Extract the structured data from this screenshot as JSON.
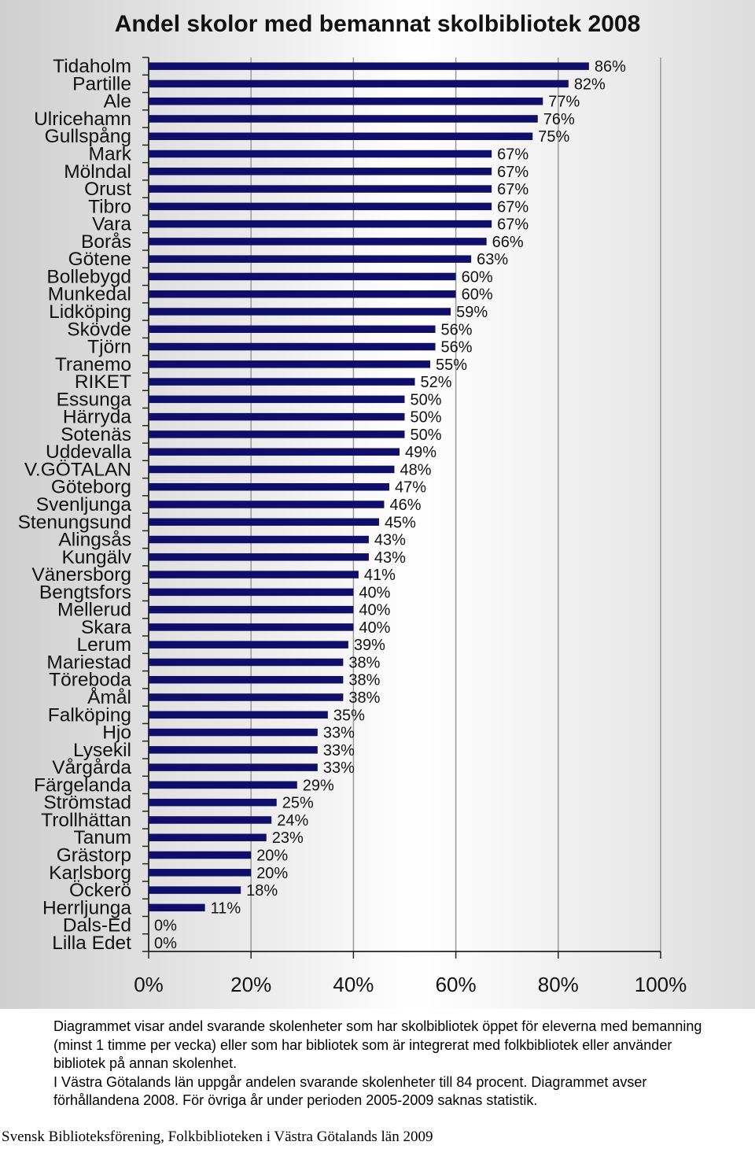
{
  "chart_data": {
    "type": "bar",
    "orientation": "horizontal",
    "title": "Andel skolor med bemannat skolbibliotek 2008",
    "categories": [
      "Tidaholm",
      "Partille",
      "Ale",
      "Ulricehamn",
      "Gullspång",
      "Mark",
      "Mölndal",
      "Orust",
      "Tibro",
      "Vara",
      "Borås",
      "Götene",
      "Bollebygd",
      "Munkedal",
      "Lidköping",
      "Skövde",
      "Tjörn",
      "Tranemo",
      "RIKET",
      "Essunga",
      "Härryda",
      "Sotenäs",
      "Uddevalla",
      "V.GÖTALAN",
      "Göteborg",
      "Svenljunga",
      "Stenungsund",
      "Alingsås",
      "Kungälv",
      "Vänersborg",
      "Bengtsfors",
      "Mellerud",
      "Skara",
      "Lerum",
      "Mariestad",
      "Töreboda",
      "Åmål",
      "Falköping",
      "Hjo",
      "Lysekil",
      "Vårgårda",
      "Färgelanda",
      "Strömstad",
      "Trollhättan",
      "Tanum",
      "Grästorp",
      "Karlsborg",
      "Öckerö",
      "Herrljunga",
      "Dals-Ed",
      "Lilla Edet"
    ],
    "values": [
      86,
      82,
      77,
      76,
      75,
      67,
      67,
      67,
      67,
      67,
      66,
      63,
      60,
      60,
      59,
      56,
      56,
      55,
      52,
      50,
      50,
      50,
      49,
      48,
      47,
      46,
      45,
      43,
      43,
      41,
      40,
      40,
      40,
      39,
      38,
      38,
      38,
      35,
      33,
      33,
      33,
      29,
      25,
      24,
      23,
      20,
      20,
      18,
      11,
      0,
      0
    ],
    "value_labels": [
      "86%",
      "82%",
      "77%",
      "76%",
      "75%",
      "67%",
      "67%",
      "67%",
      "67%",
      "67%",
      "66%",
      "63%",
      "60%",
      "60%",
      "59%",
      "56%",
      "56%",
      "55%",
      "52%",
      "50%",
      "50%",
      "50%",
      "49%",
      "48%",
      "47%",
      "46%",
      "45%",
      "43%",
      "43%",
      "41%",
      "40%",
      "40%",
      "40%",
      "39%",
      "38%",
      "38%",
      "38%",
      "35%",
      "33%",
      "33%",
      "33%",
      "29%",
      "25%",
      "24%",
      "23%",
      "20%",
      "20%",
      "18%",
      "11%",
      "0%",
      "0%"
    ],
    "xlim": [
      0,
      100
    ],
    "xticks": [
      0,
      20,
      40,
      60,
      80,
      100
    ],
    "xtick_labels": [
      "0%",
      "20%",
      "40%",
      "60%",
      "80%",
      "100%"
    ],
    "grid": "vertical",
    "bar_color": "#0f0f6b"
  },
  "caption": {
    "paragraph1": "Diagrammet visar andel svarande skolenheter som har skolbibliotek öppet för eleverna med bemanning (minst 1 timme per vecka) eller som har bibliotek som är integrerat med folkbibliotek eller använder bibliotek på annan skolenhet.",
    "paragraph2": "I Västra Götalands län uppgår andelen svarande skolenheter till 84 procent. Diagrammet avser förhållandena 2008. För övriga år under perioden 2005-2009 saknas statistik."
  },
  "source": "Svensk Biblioteksförening, Folkbiblioteken i Västra Götalands län 2009"
}
